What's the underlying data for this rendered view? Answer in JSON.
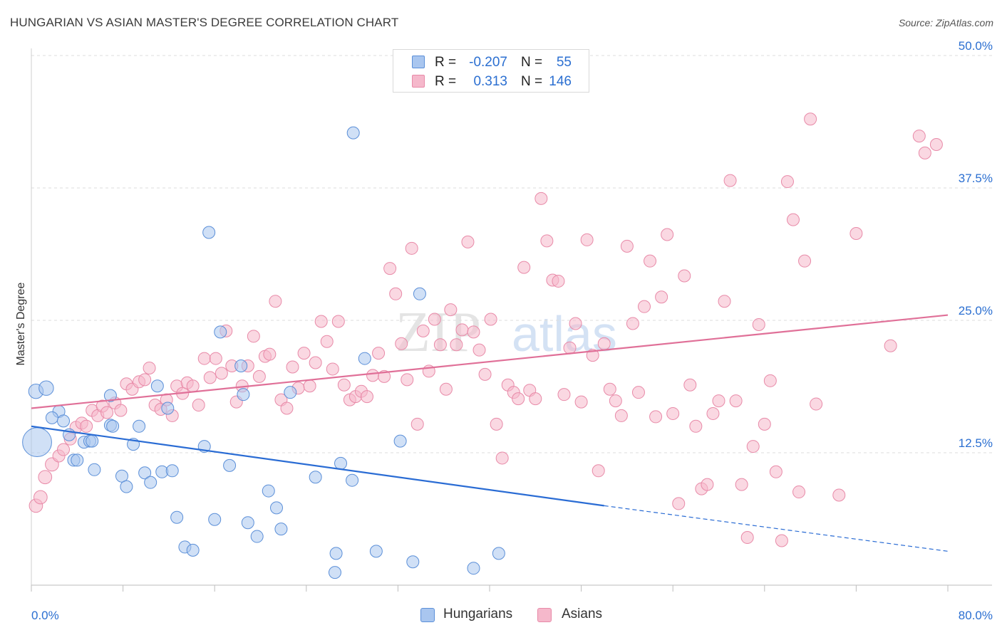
{
  "title": "HUNGARIAN VS ASIAN MASTER'S DEGREE CORRELATION CHART",
  "source": "Source: ZipAtlas.com",
  "watermark": {
    "zip": "ZIP",
    "atlas": "atlas"
  },
  "stats": {
    "rows": [
      {
        "series": "Hungarians",
        "r_label": "R =",
        "r_value": "-0.207",
        "n_label": "N =",
        "n_value": "55"
      },
      {
        "series": "Asians",
        "r_label": "R =",
        "r_value": "0.313",
        "n_label": "N =",
        "n_value": "146"
      }
    ]
  },
  "legend": {
    "hungarians": "Hungarians",
    "asians": "Asians"
  },
  "colors": {
    "blue_fill": "#a9c6ef",
    "blue_stroke": "#5b8fd8",
    "blue_line": "#2a6cd4",
    "pink_fill": "#f5b8cb",
    "pink_stroke": "#e88aa8",
    "pink_line": "#e07098",
    "value_text": "#2b6fd1",
    "grid": "#dddddd"
  },
  "chart_data": {
    "type": "scatter",
    "title": "HUNGARIAN VS ASIAN MASTER'S DEGREE CORRELATION CHART",
    "xlabel": "",
    "ylabel": "Master's Degree",
    "xlim": [
      0,
      80
    ],
    "ylim": [
      0,
      50
    ],
    "x_tick_labels": [
      "0.0%",
      "80.0%"
    ],
    "y_ticks": [
      {
        "value": 12.5,
        "label": "12.5%"
      },
      {
        "value": 25.0,
        "label": "25.0%"
      },
      {
        "value": 37.5,
        "label": "37.5%"
      },
      {
        "value": 50.0,
        "label": "50.0%"
      }
    ],
    "grid": true,
    "series": [
      {
        "name": "Hungarians",
        "trend": {
          "x1": 0,
          "y1": 15.0,
          "x2": 50,
          "y2": 7.5,
          "dash_to_x": 80,
          "dash_to_y": 3.2
        },
        "points": [
          [
            0.4,
            18.3,
            1.2
          ],
          [
            0.5,
            13.5,
            2.4
          ],
          [
            1.3,
            18.6,
            1.2
          ],
          [
            2.4,
            16.4,
            1.0
          ],
          [
            1.8,
            15.8,
            1.0
          ],
          [
            2.8,
            15.5,
            1.0
          ],
          [
            3.3,
            14.2,
            1.0
          ],
          [
            3.7,
            11.8,
            1.0
          ],
          [
            4.0,
            11.8,
            1.0
          ],
          [
            4.6,
            13.5,
            1.0
          ],
          [
            5.1,
            13.6,
            1.0
          ],
          [
            6.9,
            15.1,
            1.0
          ],
          [
            5.3,
            13.6,
            1.0
          ],
          [
            5.5,
            10.9,
            1.0
          ],
          [
            6.9,
            17.9,
            1.0
          ],
          [
            7.1,
            15.0,
            1.0
          ],
          [
            7.9,
            10.3,
            1.0
          ],
          [
            8.3,
            9.3,
            1.0
          ],
          [
            8.9,
            13.3,
            1.0
          ],
          [
            9.4,
            15.0,
            1.0
          ],
          [
            9.9,
            10.6,
            1.0
          ],
          [
            10.4,
            9.7,
            1.0
          ],
          [
            11.0,
            18.8,
            1.0
          ],
          [
            11.4,
            10.7,
            1.0
          ],
          [
            11.9,
            16.7,
            1.0
          ],
          [
            12.3,
            10.8,
            1.0
          ],
          [
            12.7,
            6.4,
            1.0
          ],
          [
            13.4,
            3.6,
            1.0
          ],
          [
            14.1,
            3.3,
            1.0
          ],
          [
            15.1,
            13.1,
            1.0
          ],
          [
            15.5,
            33.3,
            1.0
          ],
          [
            16.0,
            6.2,
            1.0
          ],
          [
            16.5,
            23.9,
            1.0
          ],
          [
            17.3,
            11.3,
            1.0
          ],
          [
            18.3,
            20.7,
            1.0
          ],
          [
            18.5,
            18.0,
            1.0
          ],
          [
            18.9,
            5.9,
            1.0
          ],
          [
            19.7,
            4.6,
            1.0
          ],
          [
            20.7,
            8.9,
            1.0
          ],
          [
            21.4,
            7.3,
            1.0
          ],
          [
            21.8,
            5.3,
            1.0
          ],
          [
            22.6,
            18.2,
            1.0
          ],
          [
            24.8,
            10.2,
            1.0
          ],
          [
            26.5,
            1.2,
            1.0
          ],
          [
            26.6,
            3.0,
            1.0
          ],
          [
            27.0,
            11.5,
            1.0
          ],
          [
            28.0,
            9.9,
            1.0
          ],
          [
            28.1,
            42.7,
            1.0
          ],
          [
            29.1,
            21.4,
            1.0
          ],
          [
            30.1,
            3.2,
            1.0
          ],
          [
            32.2,
            13.6,
            1.0
          ],
          [
            33.3,
            2.2,
            1.0
          ],
          [
            33.9,
            27.5,
            1.0
          ],
          [
            38.6,
            1.6,
            1.0
          ],
          [
            40.8,
            3.0,
            1.0
          ]
        ]
      },
      {
        "name": "Asians",
        "trend": {
          "x1": 0,
          "y1": 16.7,
          "x2": 80,
          "y2": 25.5
        },
        "points": [
          [
            0.4,
            7.5,
            1.1
          ],
          [
            0.8,
            8.3,
            1.1
          ],
          [
            1.2,
            10.2,
            1.1
          ],
          [
            1.8,
            11.4,
            1.1
          ],
          [
            2.4,
            12.2,
            1.0
          ],
          [
            2.8,
            12.8,
            1.0
          ],
          [
            3.4,
            13.8,
            1.0
          ],
          [
            3.9,
            14.9,
            1.0
          ],
          [
            4.4,
            15.3,
            1.0
          ],
          [
            4.8,
            15.0,
            1.0
          ],
          [
            5.3,
            16.5,
            1.0
          ],
          [
            5.8,
            16.0,
            1.0
          ],
          [
            6.2,
            16.9,
            1.0
          ],
          [
            6.6,
            16.3,
            1.0
          ],
          [
            7.3,
            17.2,
            1.0
          ],
          [
            7.8,
            16.5,
            1.0
          ],
          [
            8.3,
            19.0,
            1.0
          ],
          [
            8.8,
            18.5,
            1.0
          ],
          [
            9.4,
            19.2,
            1.0
          ],
          [
            9.9,
            19.4,
            1.0
          ],
          [
            10.3,
            20.5,
            1.0
          ],
          [
            10.8,
            17.0,
            1.0
          ],
          [
            11.3,
            16.6,
            1.0
          ],
          [
            11.8,
            17.5,
            1.0
          ],
          [
            12.3,
            16.0,
            1.0
          ],
          [
            12.7,
            18.8,
            1.0
          ],
          [
            13.2,
            18.1,
            1.0
          ],
          [
            13.6,
            19.1,
            1.0
          ],
          [
            14.1,
            18.8,
            1.0
          ],
          [
            14.6,
            17.0,
            1.0
          ],
          [
            15.1,
            21.4,
            1.0
          ],
          [
            15.6,
            19.6,
            1.0
          ],
          [
            16.1,
            21.4,
            1.0
          ],
          [
            16.6,
            20.0,
            1.0
          ],
          [
            17.0,
            24.0,
            1.0
          ],
          [
            17.5,
            20.7,
            1.0
          ],
          [
            17.9,
            17.3,
            1.0
          ],
          [
            18.4,
            18.8,
            1.0
          ],
          [
            18.9,
            20.7,
            1.0
          ],
          [
            19.4,
            23.5,
            1.0
          ],
          [
            19.9,
            19.7,
            1.0
          ],
          [
            20.4,
            21.6,
            1.0
          ],
          [
            20.8,
            21.8,
            1.0
          ],
          [
            21.3,
            26.8,
            1.0
          ],
          [
            21.8,
            17.5,
            1.0
          ],
          [
            22.3,
            16.7,
            1.0
          ],
          [
            22.8,
            20.6,
            1.0
          ],
          [
            23.3,
            18.6,
            1.0
          ],
          [
            23.8,
            21.9,
            1.0
          ],
          [
            24.3,
            18.8,
            1.0
          ],
          [
            24.8,
            21.0,
            1.0
          ],
          [
            25.3,
            24.9,
            1.0
          ],
          [
            25.8,
            23.0,
            1.0
          ],
          [
            26.3,
            20.4,
            1.0
          ],
          [
            26.8,
            24.9,
            1.0
          ],
          [
            27.3,
            18.9,
            1.0
          ],
          [
            27.8,
            17.5,
            1.0
          ],
          [
            28.3,
            17.8,
            1.0
          ],
          [
            28.8,
            18.3,
            1.0
          ],
          [
            29.3,
            17.8,
            1.0
          ],
          [
            29.8,
            19.8,
            1.0
          ],
          [
            30.3,
            21.9,
            1.0
          ],
          [
            30.8,
            19.7,
            1.0
          ],
          [
            31.3,
            29.9,
            1.0
          ],
          [
            31.8,
            27.5,
            1.0
          ],
          [
            32.3,
            22.8,
            1.0
          ],
          [
            32.8,
            19.4,
            1.0
          ],
          [
            33.2,
            31.8,
            1.0
          ],
          [
            33.7,
            15.2,
            1.0
          ],
          [
            34.2,
            24.0,
            1.0
          ],
          [
            34.7,
            20.2,
            1.0
          ],
          [
            35.2,
            25.1,
            1.0
          ],
          [
            35.7,
            22.7,
            1.0
          ],
          [
            36.2,
            18.5,
            1.0
          ],
          [
            36.6,
            26.0,
            1.0
          ],
          [
            37.1,
            22.7,
            1.0
          ],
          [
            37.6,
            24.1,
            1.0
          ],
          [
            38.1,
            32.4,
            1.0
          ],
          [
            38.6,
            23.9,
            1.0
          ],
          [
            39.1,
            22.2,
            1.0
          ],
          [
            39.6,
            19.9,
            1.0
          ],
          [
            40.1,
            25.1,
            1.0
          ],
          [
            40.6,
            15.2,
            1.0
          ],
          [
            41.1,
            12.0,
            1.0
          ],
          [
            41.6,
            18.9,
            1.0
          ],
          [
            42.1,
            18.2,
            1.0
          ],
          [
            42.5,
            17.6,
            1.0
          ],
          [
            43.0,
            30.0,
            1.0
          ],
          [
            43.5,
            18.4,
            1.0
          ],
          [
            44.0,
            17.6,
            1.0
          ],
          [
            44.5,
            36.5,
            1.0
          ],
          [
            45.0,
            32.5,
            1.0
          ],
          [
            45.5,
            28.8,
            1.0
          ],
          [
            46.0,
            28.7,
            1.0
          ],
          [
            46.5,
            18.0,
            1.0
          ],
          [
            47.0,
            22.4,
            1.0
          ],
          [
            47.5,
            24.7,
            1.0
          ],
          [
            48.0,
            17.3,
            1.0
          ],
          [
            48.5,
            32.6,
            1.0
          ],
          [
            49.0,
            21.7,
            1.0
          ],
          [
            49.5,
            10.8,
            1.0
          ],
          [
            50.0,
            22.8,
            1.0
          ],
          [
            50.5,
            18.5,
            1.0
          ],
          [
            51.0,
            17.4,
            1.0
          ],
          [
            51.5,
            16.0,
            1.0
          ],
          [
            52.0,
            32.0,
            1.0
          ],
          [
            52.5,
            24.7,
            1.0
          ],
          [
            53.0,
            18.2,
            1.0
          ],
          [
            53.5,
            26.3,
            1.0
          ],
          [
            54.0,
            30.6,
            1.0
          ],
          [
            54.5,
            15.9,
            1.0
          ],
          [
            55.0,
            27.2,
            1.0
          ],
          [
            55.5,
            33.1,
            1.0
          ],
          [
            56.0,
            16.2,
            1.0
          ],
          [
            56.5,
            7.7,
            1.0
          ],
          [
            57.0,
            29.2,
            1.0
          ],
          [
            57.5,
            18.9,
            1.0
          ],
          [
            58.0,
            15.0,
            1.0
          ],
          [
            58.5,
            9.1,
            1.0
          ],
          [
            59.0,
            9.5,
            1.0
          ],
          [
            59.5,
            16.2,
            1.0
          ],
          [
            60.0,
            17.4,
            1.0
          ],
          [
            60.5,
            26.8,
            1.0
          ],
          [
            61.0,
            38.2,
            1.0
          ],
          [
            61.5,
            17.4,
            1.0
          ],
          [
            62.0,
            9.5,
            1.0
          ],
          [
            62.5,
            4.5,
            1.0
          ],
          [
            63.0,
            13.1,
            1.0
          ],
          [
            63.5,
            24.6,
            1.0
          ],
          [
            64.0,
            15.2,
            1.0
          ],
          [
            64.5,
            19.3,
            1.0
          ],
          [
            65.0,
            10.7,
            1.0
          ],
          [
            65.5,
            4.2,
            1.0
          ],
          [
            66.0,
            38.1,
            1.0
          ],
          [
            66.5,
            34.5,
            1.0
          ],
          [
            67.0,
            8.8,
            1.0
          ],
          [
            67.5,
            30.6,
            1.0
          ],
          [
            68.0,
            44.0,
            1.0
          ],
          [
            68.5,
            17.1,
            1.0
          ],
          [
            70.5,
            8.5,
            1.0
          ],
          [
            72.0,
            33.2,
            1.0
          ],
          [
            75.0,
            22.6,
            1.0
          ],
          [
            77.5,
            42.4,
            1.0
          ],
          [
            78.0,
            40.8,
            1.0
          ],
          [
            79.0,
            41.6,
            1.0
          ]
        ]
      }
    ]
  }
}
